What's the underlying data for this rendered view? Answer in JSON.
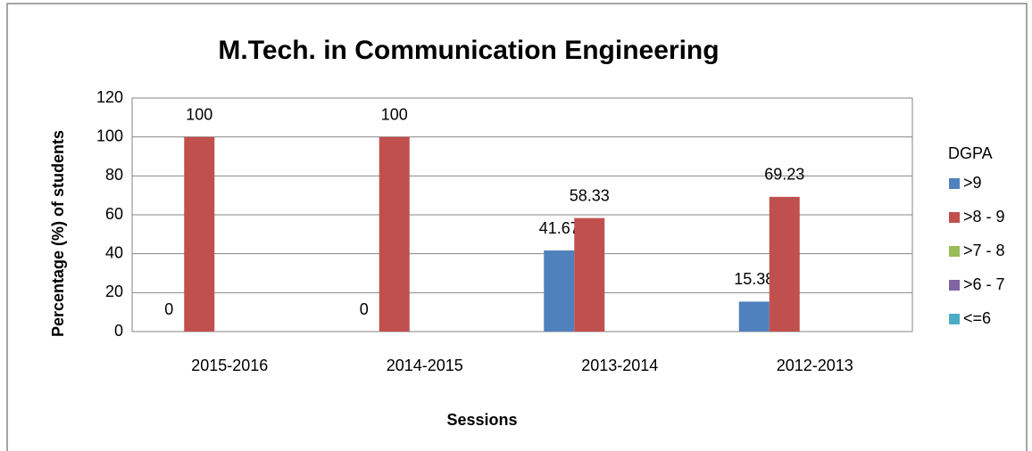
{
  "chart_data": {
    "type": "bar",
    "title": "M.Tech. in Communication Engineering",
    "x_label": "Sessions",
    "y_label": "Percentage (%) of students",
    "categories": [
      "2015-2016",
      "2014-2015",
      "2013-2014",
      "2012-2013"
    ],
    "legend_title": "DGPA",
    "legend_position": "right",
    "series": [
      {
        "name": ">9",
        "color": "#4f81bd",
        "values": [
          0,
          0,
          41.67,
          15.38
        ],
        "data_labels": true
      },
      {
        "name": ">8 - 9",
        "color": "#c0504d",
        "values": [
          100,
          100,
          58.33,
          69.23
        ],
        "data_labels": true
      },
      {
        "name": ">7 - 8",
        "color": "#9bbb59",
        "values": [
          null,
          null,
          null,
          null
        ],
        "data_labels": false
      },
      {
        "name": ">6 - 7",
        "color": "#8064a2",
        "values": [
          null,
          null,
          null,
          null
        ],
        "data_labels": false
      },
      {
        "name": "<=6",
        "color": "#4bacc6",
        "values": [
          null,
          null,
          null,
          null
        ],
        "data_labels": false
      }
    ],
    "ylim": [
      0,
      120
    ],
    "yticks": [
      0,
      20,
      40,
      60,
      80,
      100,
      120
    ],
    "grid": true
  }
}
